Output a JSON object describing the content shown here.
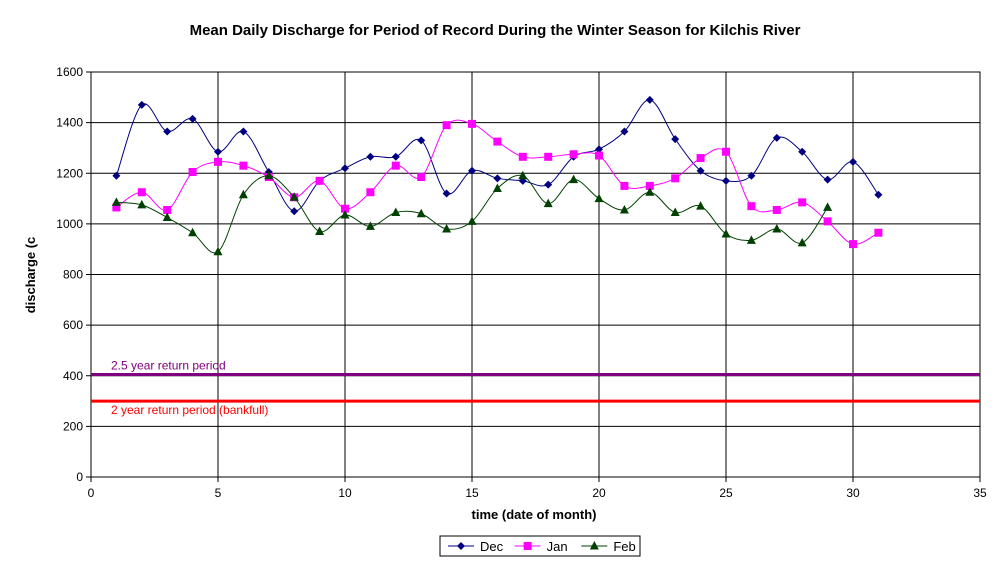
{
  "chart_data": {
    "type": "line",
    "title": "Mean Daily Discharge for Period of Record During the Winter Season for Kilchis River",
    "xlabel": "time (date of month)",
    "ylabel": "discharge (c",
    "xlim": [
      0,
      35
    ],
    "ylim": [
      0,
      1600
    ],
    "xticks": [
      0,
      5,
      10,
      15,
      20,
      25,
      30,
      35
    ],
    "yticks": [
      0,
      200,
      400,
      600,
      800,
      1000,
      1200,
      1400,
      1600
    ],
    "grid": true,
    "legend": "bottom-center",
    "series": [
      {
        "name": "Dec",
        "color": "#000080",
        "marker": "diamond",
        "x": [
          1,
          2,
          3,
          4,
          5,
          6,
          7,
          8,
          9,
          10,
          11,
          12,
          13,
          14,
          15,
          16,
          17,
          18,
          19,
          20,
          21,
          22,
          23,
          24,
          25,
          26,
          27,
          28,
          29,
          30,
          31
        ],
        "values": [
          1190,
          1470,
          1365,
          1415,
          1285,
          1365,
          1205,
          1050,
          1170,
          1220,
          1265,
          1265,
          1330,
          1120,
          1210,
          1180,
          1170,
          1155,
          1265,
          1295,
          1365,
          1490,
          1335,
          1210,
          1170,
          1190,
          1340,
          1285,
          1175,
          1245,
          1115
        ]
      },
      {
        "name": "Jan",
        "color": "#ff00ff",
        "marker": "square",
        "x": [
          1,
          2,
          3,
          4,
          5,
          6,
          7,
          8,
          9,
          10,
          11,
          12,
          13,
          14,
          15,
          16,
          17,
          18,
          19,
          20,
          21,
          22,
          23,
          24,
          25,
          26,
          27,
          28,
          29,
          30,
          31
        ],
        "values": [
          1065,
          1125,
          1055,
          1205,
          1245,
          1230,
          1185,
          1105,
          1170,
          1060,
          1125,
          1230,
          1185,
          1390,
          1395,
          1325,
          1265,
          1265,
          1275,
          1270,
          1150,
          1150,
          1180,
          1260,
          1285,
          1070,
          1055,
          1085,
          1010,
          920,
          965
        ]
      },
      {
        "name": "Feb",
        "color": "#004000",
        "marker": "triangle",
        "x": [
          1,
          2,
          3,
          4,
          5,
          6,
          7,
          8,
          9,
          10,
          11,
          12,
          13,
          14,
          15,
          16,
          17,
          18,
          19,
          20,
          21,
          22,
          23,
          24,
          25,
          26,
          27,
          28,
          29
        ],
        "values": [
          1085,
          1075,
          1025,
          965,
          890,
          1115,
          1190,
          1105,
          970,
          1035,
          990,
          1045,
          1040,
          980,
          1010,
          1140,
          1190,
          1080,
          1175,
          1100,
          1055,
          1125,
          1045,
          1070,
          960,
          935,
          980,
          925,
          1065
        ]
      }
    ],
    "reference_lines": [
      {
        "label": "2.5 year return period",
        "value": 405,
        "color": "#800080",
        "label_color": "#800080"
      },
      {
        "label": "2 year return period (bankfull)",
        "value": 300,
        "color": "#ff0000",
        "label_color": "#ff0000"
      }
    ]
  }
}
